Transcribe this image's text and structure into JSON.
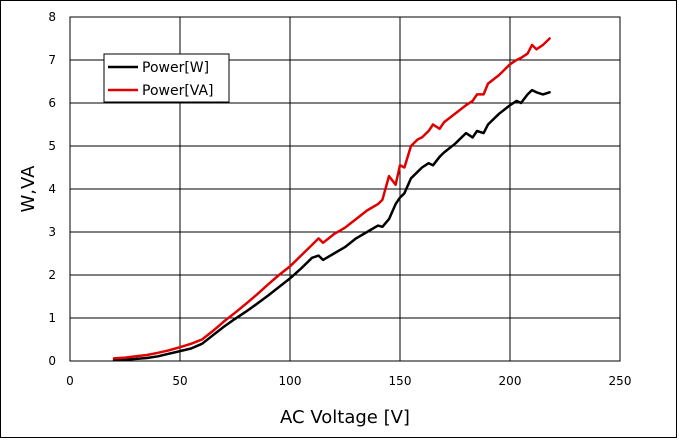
{
  "chart_data": {
    "type": "line",
    "title": "",
    "xlabel": "AC Voltage [V]",
    "ylabel": "W,VA",
    "xlim": [
      0,
      250
    ],
    "ylim": [
      0,
      8
    ],
    "xticks": [
      "0",
      "50",
      "100",
      "150",
      "200",
      "250"
    ],
    "yticks": [
      "0",
      "1",
      "2",
      "3",
      "4",
      "5",
      "6",
      "7",
      "8"
    ],
    "grid": true,
    "legend_position": "top-left",
    "series": [
      {
        "name": "Power[W]",
        "color": "#000000",
        "x": [
          20,
          25,
          30,
          35,
          40,
          45,
          50,
          55,
          60,
          65,
          70,
          75,
          80,
          85,
          90,
          95,
          100,
          105,
          110,
          113,
          115,
          120,
          125,
          130,
          135,
          140,
          142,
          145,
          148,
          150,
          152,
          155,
          158,
          160,
          163,
          165,
          168,
          170,
          175,
          180,
          183,
          185,
          188,
          190,
          195,
          200,
          203,
          205,
          208,
          210,
          212,
          215,
          218
        ],
        "y": [
          0.02,
          0.03,
          0.05,
          0.07,
          0.11,
          0.17,
          0.23,
          0.29,
          0.4,
          0.6,
          0.8,
          0.98,
          1.15,
          1.33,
          1.52,
          1.72,
          1.92,
          2.15,
          2.4,
          2.45,
          2.35,
          2.5,
          2.65,
          2.85,
          3.0,
          3.15,
          3.12,
          3.3,
          3.65,
          3.8,
          3.9,
          4.25,
          4.4,
          4.5,
          4.6,
          4.55,
          4.75,
          4.85,
          5.05,
          5.3,
          5.2,
          5.35,
          5.3,
          5.5,
          5.75,
          5.95,
          6.05,
          6.0,
          6.2,
          6.3,
          6.25,
          6.2,
          6.25
        ]
      },
      {
        "name": "Power[VA]",
        "color": "#e00000",
        "x": [
          20,
          25,
          30,
          35,
          40,
          45,
          50,
          55,
          60,
          65,
          70,
          75,
          80,
          85,
          90,
          95,
          100,
          105,
          110,
          113,
          115,
          120,
          125,
          130,
          135,
          140,
          142,
          145,
          148,
          150,
          152,
          155,
          158,
          160,
          163,
          165,
          168,
          170,
          175,
          180,
          183,
          185,
          188,
          190,
          195,
          200,
          203,
          205,
          208,
          210,
          212,
          215,
          218
        ],
        "y": [
          0.06,
          0.08,
          0.11,
          0.14,
          0.19,
          0.25,
          0.32,
          0.4,
          0.5,
          0.7,
          0.92,
          1.12,
          1.33,
          1.55,
          1.78,
          2.0,
          2.2,
          2.45,
          2.7,
          2.85,
          2.75,
          2.95,
          3.1,
          3.3,
          3.5,
          3.65,
          3.75,
          4.3,
          4.1,
          4.55,
          4.5,
          5.0,
          5.15,
          5.2,
          5.35,
          5.5,
          5.4,
          5.55,
          5.75,
          5.95,
          6.05,
          6.2,
          6.2,
          6.45,
          6.65,
          6.9,
          7.0,
          7.05,
          7.15,
          7.35,
          7.25,
          7.35,
          7.5
        ]
      }
    ]
  }
}
